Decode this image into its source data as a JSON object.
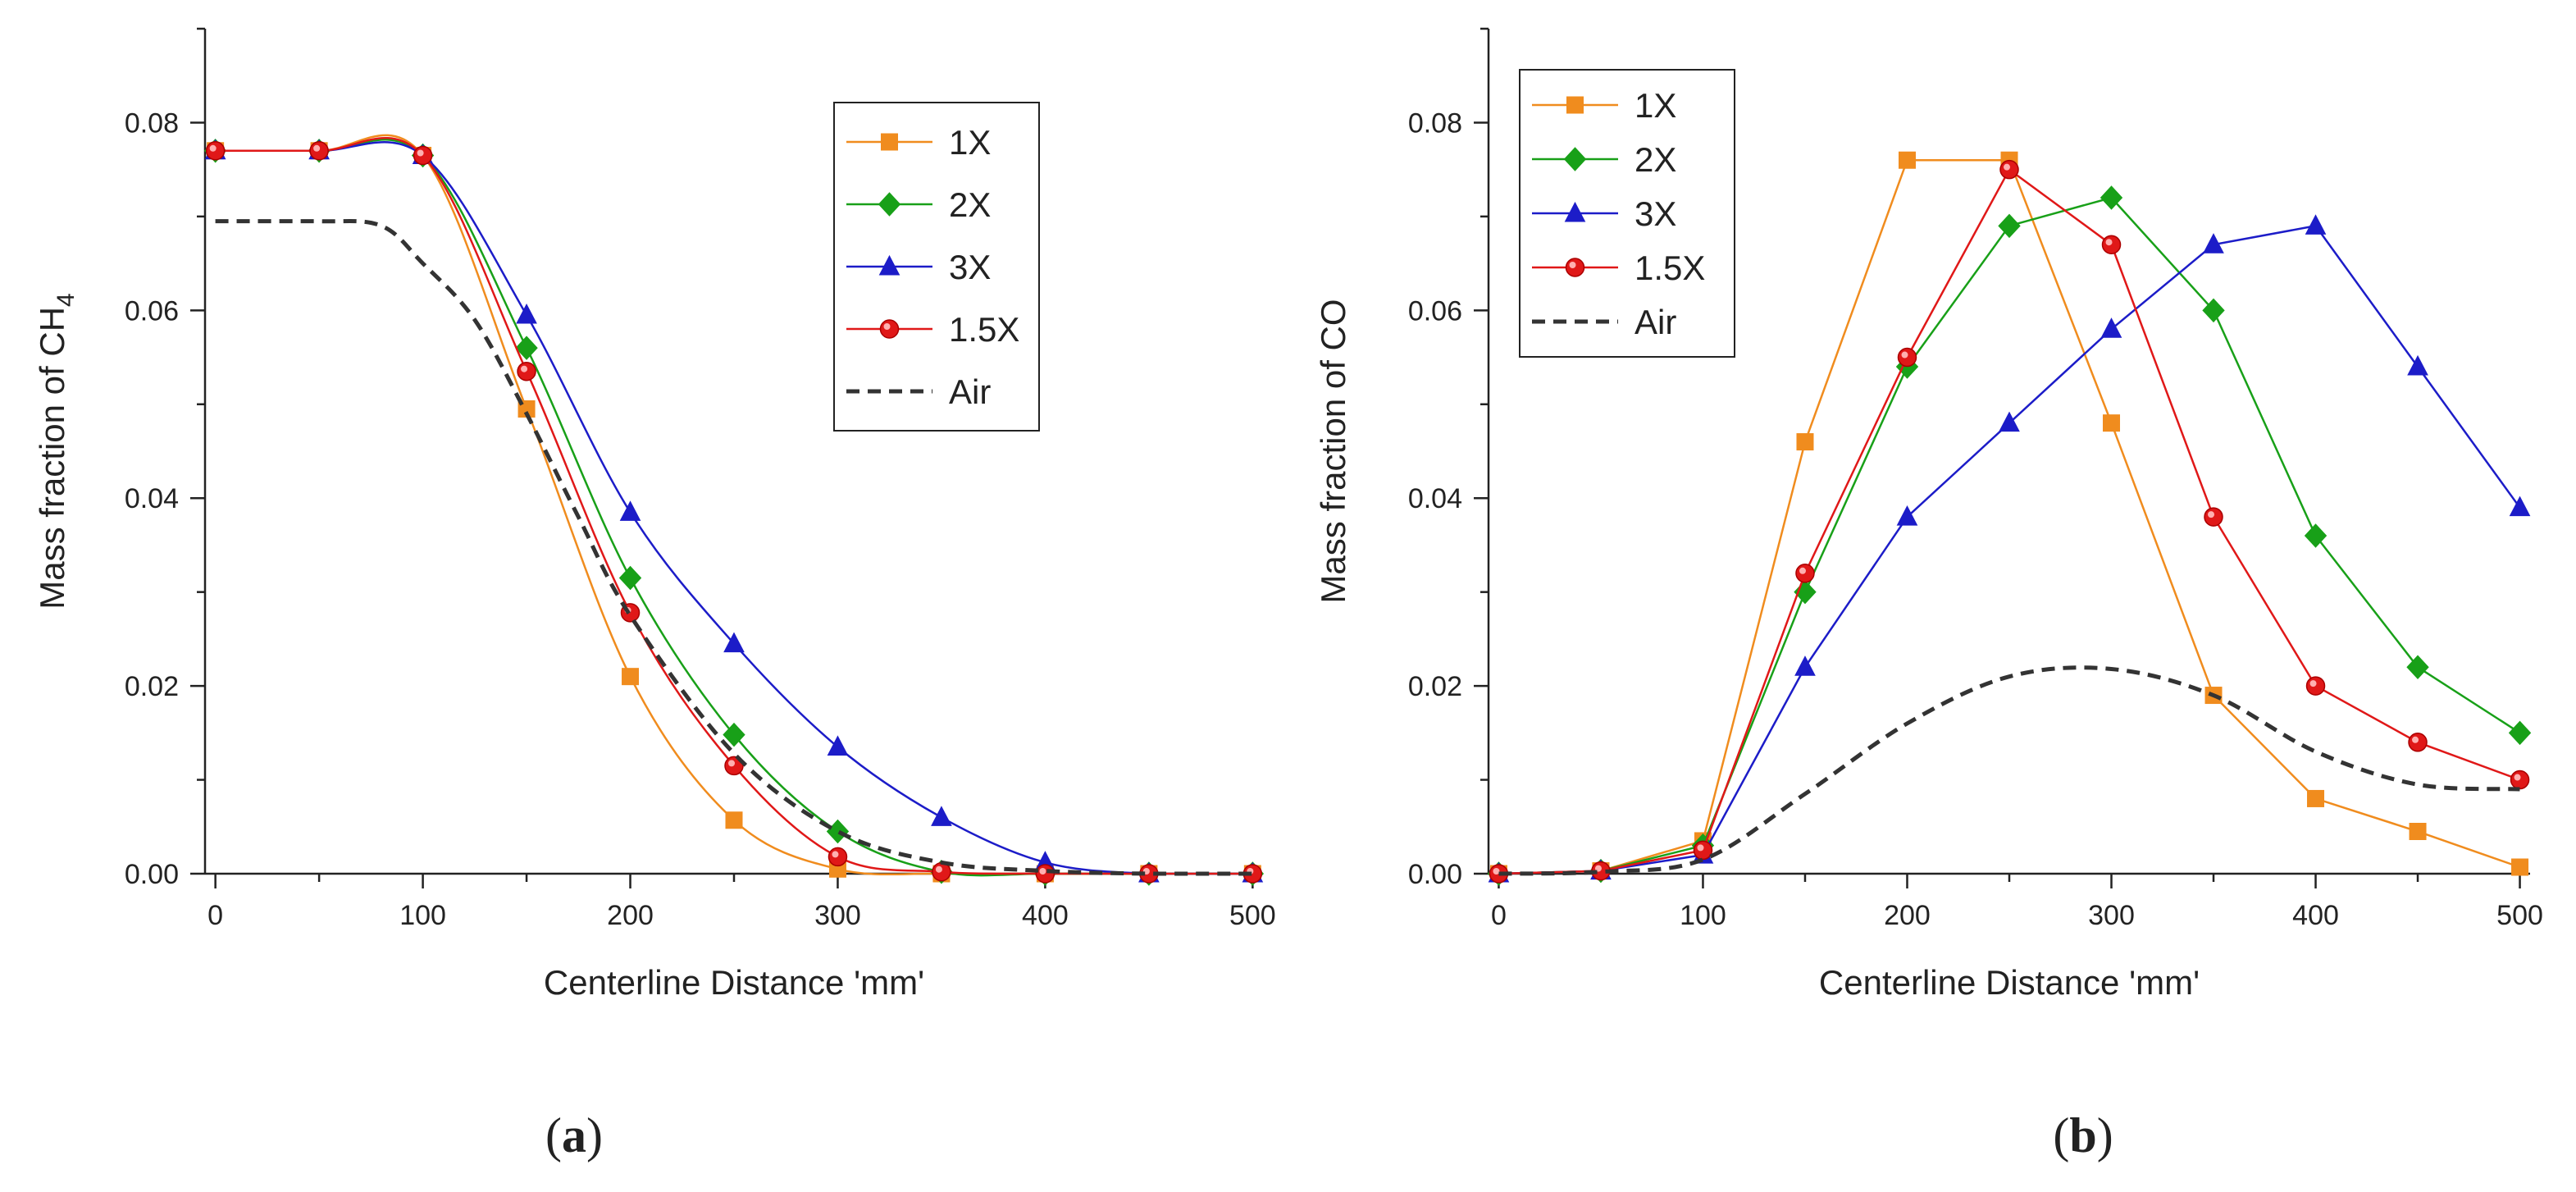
{
  "chart_data": [
    {
      "panel": "a",
      "panel_label": {
        "open": "(",
        "letter": "a",
        "close": ")"
      },
      "type": "line",
      "xlabel": "Centerline Distance 'mm'",
      "ylabel": {
        "prefix": "Mass fraction of CH",
        "sub": "4"
      },
      "xlim": [
        -5,
        505
      ],
      "ylim": [
        0,
        0.09
      ],
      "xticks": [
        0,
        100,
        200,
        300,
        400,
        500
      ],
      "xtick_labels": [
        "0",
        "100",
        "200",
        "300",
        "400",
        "500"
      ],
      "yticks": [
        0,
        0.02,
        0.04,
        0.06,
        0.08
      ],
      "ytick_labels": [
        "0.00",
        "0.02",
        "0.04",
        "0.06",
        "0.08"
      ],
      "legend_position": "top-right",
      "series": [
        {
          "name": "1X",
          "color": "#f08c1e",
          "marker": "square",
          "dashed": false,
          "smooth": true,
          "x": [
            0,
            50,
            100,
            150,
            200,
            250,
            300,
            350,
            400,
            450,
            500
          ],
          "values": [
            0.077,
            0.077,
            0.0765,
            0.0495,
            0.021,
            0.0057,
            0.0005,
            0.0,
            0.0,
            0.0,
            0.0
          ]
        },
        {
          "name": "2X",
          "color": "#18a018",
          "marker": "diamond",
          "dashed": false,
          "smooth": true,
          "x": [
            0,
            50,
            100,
            150,
            200,
            250,
            300,
            350,
            400,
            450,
            500
          ],
          "values": [
            0.077,
            0.077,
            0.0765,
            0.056,
            0.0315,
            0.0148,
            0.0045,
            0.0002,
            0.0,
            0.0,
            0.0
          ]
        },
        {
          "name": "3X",
          "color": "#1c1cc8",
          "marker": "triangle",
          "dashed": false,
          "smooth": true,
          "x": [
            0,
            50,
            100,
            150,
            200,
            250,
            300,
            350,
            400,
            450,
            500
          ],
          "values": [
            0.077,
            0.077,
            0.0765,
            0.0595,
            0.0385,
            0.0245,
            0.0135,
            0.006,
            0.0012,
            0.0,
            0.0
          ]
        },
        {
          "name": "1.5X",
          "color": "#e01818",
          "marker": "circle",
          "dashed": false,
          "smooth": true,
          "x": [
            0,
            50,
            100,
            150,
            200,
            250,
            300,
            350,
            400,
            450,
            500
          ],
          "values": [
            0.077,
            0.077,
            0.0765,
            0.0535,
            0.0278,
            0.0115,
            0.0018,
            0.0002,
            0.0,
            0.0,
            0.0
          ]
        },
        {
          "name": "Air",
          "color": "#333333",
          "marker": "none",
          "dashed": true,
          "smooth": true,
          "x": [
            0,
            50,
            80,
            100,
            125,
            150,
            175,
            200,
            250,
            300,
            350,
            400,
            450,
            500
          ],
          "values": [
            0.0695,
            0.0695,
            0.069,
            0.065,
            0.059,
            0.049,
            0.038,
            0.0275,
            0.0128,
            0.0045,
            0.0012,
            0.0003,
            0.0,
            0.0
          ]
        }
      ]
    },
    {
      "panel": "b",
      "panel_label": {
        "open": "(",
        "letter": "b",
        "close": ")"
      },
      "type": "line",
      "xlabel": "Centerline Distance 'mm'",
      "ylabel": {
        "prefix": "Mass fraction of CO",
        "sub": ""
      },
      "xlim": [
        -5,
        505
      ],
      "ylim": [
        0,
        0.09
      ],
      "xticks": [
        0,
        100,
        200,
        300,
        400,
        500
      ],
      "xtick_labels": [
        "0",
        "100",
        "200",
        "300",
        "400",
        "500"
      ],
      "yticks": [
        0,
        0.02,
        0.04,
        0.06,
        0.08
      ],
      "ytick_labels": [
        "0.00",
        "0.02",
        "0.04",
        "0.06",
        "0.08"
      ],
      "legend_position": "top-left",
      "series": [
        {
          "name": "1X",
          "color": "#f08c1e",
          "marker": "square",
          "dashed": false,
          "smooth": false,
          "x": [
            0,
            50,
            100,
            150,
            200,
            250,
            300,
            350,
            400,
            450,
            500
          ],
          "values": [
            0.0,
            0.0003,
            0.0035,
            0.046,
            0.076,
            0.076,
            0.048,
            0.019,
            0.008,
            0.0045,
            0.0007
          ]
        },
        {
          "name": "2X",
          "color": "#18a018",
          "marker": "diamond",
          "dashed": false,
          "smooth": false,
          "x": [
            0,
            50,
            100,
            150,
            200,
            250,
            300,
            350,
            400,
            450,
            500
          ],
          "values": [
            0.0,
            0.0003,
            0.003,
            0.03,
            0.054,
            0.069,
            0.072,
            0.06,
            0.036,
            0.022,
            0.015
          ]
        },
        {
          "name": "3X",
          "color": "#1c1cc8",
          "marker": "triangle",
          "dashed": false,
          "smooth": false,
          "x": [
            0,
            50,
            100,
            150,
            200,
            250,
            300,
            350,
            400,
            450,
            500
          ],
          "values": [
            0.0,
            0.0003,
            0.002,
            0.022,
            0.038,
            0.048,
            0.058,
            0.067,
            0.069,
            0.054,
            0.039
          ]
        },
        {
          "name": "1.5X",
          "color": "#e01818",
          "marker": "circle",
          "dashed": false,
          "smooth": false,
          "x": [
            0,
            50,
            100,
            150,
            200,
            250,
            300,
            350,
            400,
            450,
            500
          ],
          "values": [
            0.0,
            0.0003,
            0.0025,
            0.032,
            0.055,
            0.075,
            0.067,
            0.038,
            0.02,
            0.014,
            0.01
          ]
        },
        {
          "name": "Air",
          "color": "#333333",
          "marker": "none",
          "dashed": true,
          "smooth": true,
          "x": [
            0,
            50,
            100,
            150,
            200,
            250,
            300,
            350,
            400,
            450,
            500
          ],
          "values": [
            0.0,
            0.0002,
            0.0015,
            0.0085,
            0.016,
            0.021,
            0.0218,
            0.019,
            0.013,
            0.0095,
            0.009
          ]
        }
      ]
    }
  ]
}
